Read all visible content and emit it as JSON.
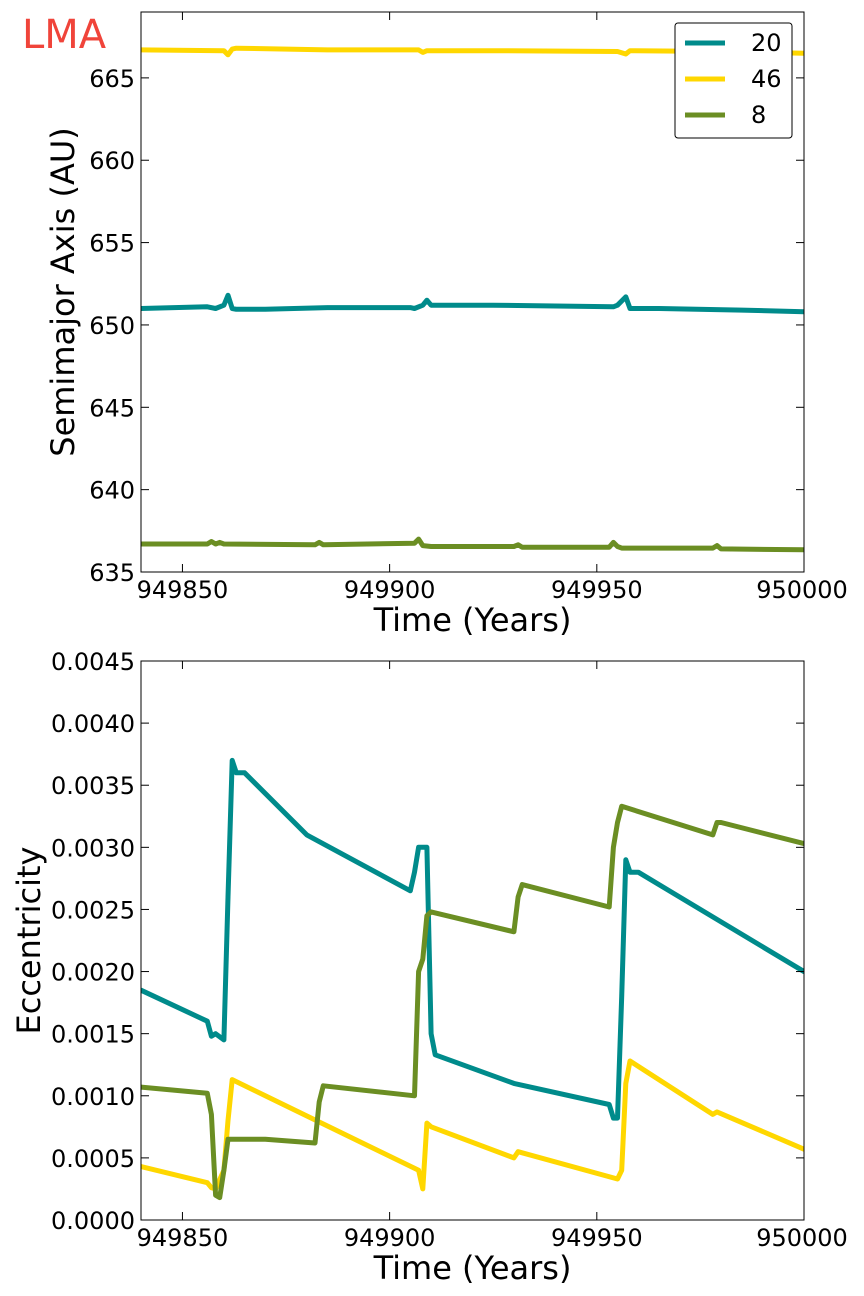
{
  "corner_label": "LMA",
  "colors": {
    "corner_label": "#f0443a",
    "series_20": "#008b8b",
    "series_46": "#ffd700",
    "series_8": "#6b8e23"
  },
  "chart_data": [
    {
      "type": "line",
      "xlabel": "Time (Years)",
      "ylabel": "Semimajor Axis (AU)",
      "xlim": [
        949840,
        950000
      ],
      "ylim": [
        635,
        669
      ],
      "x_ticks": [
        949850,
        949900,
        949950,
        950000
      ],
      "x_tick_labels": [
        "949850",
        "949900",
        "949950",
        "950000"
      ],
      "y_ticks": [
        635,
        640,
        645,
        650,
        655,
        660,
        665
      ],
      "y_tick_labels": [
        "635",
        "640",
        "645",
        "650",
        "655",
        "660",
        "665"
      ],
      "grid": false,
      "legend_position": "top-right",
      "series": [
        {
          "name": "20",
          "color": "#008b8b",
          "x": [
            949840,
            949856,
            949858,
            949860,
            949861,
            949862,
            949863,
            949870,
            949885,
            949905,
            949906,
            949908,
            949909,
            949910,
            949925,
            949940,
            949954,
            949955,
            949957,
            949958,
            949965,
            949985,
            950000
          ],
          "y": [
            651.0,
            651.1,
            651.0,
            651.2,
            651.8,
            651.0,
            650.95,
            650.95,
            651.05,
            651.05,
            651.0,
            651.2,
            651.5,
            651.2,
            651.2,
            651.15,
            651.1,
            651.2,
            651.7,
            651.0,
            651.0,
            650.9,
            650.8
          ]
        },
        {
          "name": "46",
          "color": "#ffd700",
          "x": [
            949840,
            949860,
            949861,
            949862,
            949863,
            949885,
            949907,
            949908,
            949909,
            949925,
            949955,
            949957,
            949958,
            949980,
            950000
          ],
          "y": [
            666.7,
            666.65,
            666.4,
            666.75,
            666.8,
            666.7,
            666.7,
            666.55,
            666.65,
            666.65,
            666.6,
            666.45,
            666.65,
            666.6,
            666.5
          ]
        },
        {
          "name": "8",
          "color": "#6b8e23",
          "x": [
            949840,
            949856,
            949857,
            949858,
            949859,
            949860,
            949882,
            949883,
            949884,
            949906,
            949907,
            949908,
            949910,
            949930,
            949931,
            949932,
            949953,
            949954,
            949955,
            949956,
            949978,
            949979,
            949980,
            950000
          ],
          "y": [
            636.7,
            636.7,
            636.85,
            636.7,
            636.8,
            636.7,
            636.65,
            636.8,
            636.65,
            636.75,
            637.0,
            636.6,
            636.55,
            636.55,
            636.65,
            636.5,
            636.5,
            636.8,
            636.55,
            636.45,
            636.45,
            636.6,
            636.4,
            636.35
          ]
        }
      ]
    },
    {
      "type": "line",
      "xlabel": "Time (Years)",
      "ylabel": "Eccentricity",
      "xlim": [
        949840,
        950000
      ],
      "ylim": [
        0.0,
        0.0045
      ],
      "x_ticks": [
        949850,
        949900,
        949950,
        950000
      ],
      "x_tick_labels": [
        "949850",
        "949900",
        "949950",
        "950000"
      ],
      "y_ticks": [
        0.0,
        0.0005,
        0.001,
        0.0015,
        0.002,
        0.0025,
        0.003,
        0.0035,
        0.004,
        0.0045
      ],
      "y_tick_labels": [
        "0.0000",
        "0.0005",
        "0.0010",
        "0.0015",
        "0.0020",
        "0.0025",
        "0.0030",
        "0.0035",
        "0.0040",
        "0.0045"
      ],
      "grid": false,
      "series": [
        {
          "name": "20",
          "color": "#008b8b",
          "x": [
            949840,
            949856,
            949857,
            949858,
            949860,
            949861,
            949862,
            949863,
            949865,
            949880,
            949905,
            949906,
            949907,
            949909,
            949910,
            949911,
            949930,
            949953,
            949954,
            949955,
            949956,
            949957,
            949958,
            949960,
            949980,
            950000
          ],
          "y": [
            0.00185,
            0.0016,
            0.00148,
            0.0015,
            0.00145,
            0.0026,
            0.0037,
            0.0036,
            0.0036,
            0.0031,
            0.00265,
            0.0028,
            0.003,
            0.003,
            0.0015,
            0.00133,
            0.0011,
            0.00093,
            0.00082,
            0.00082,
            0.0018,
            0.0029,
            0.0028,
            0.0028,
            0.0024,
            0.002
          ]
        },
        {
          "name": "46",
          "color": "#ffd700",
          "x": [
            949840,
            949856,
            949857,
            949858,
            949860,
            949861,
            949862,
            949870,
            949907,
            949908,
            949909,
            949910,
            949930,
            949931,
            949955,
            949956,
            949957,
            949958,
            949978,
            949979,
            950000
          ],
          "y": [
            0.00043,
            0.0003,
            0.00026,
            0.00025,
            0.0004,
            0.0008,
            0.00113,
            0.001,
            0.0004,
            0.00025,
            0.00078,
            0.00075,
            0.0005,
            0.00055,
            0.00033,
            0.0004,
            0.0011,
            0.00128,
            0.00085,
            0.00087,
            0.00057
          ]
        },
        {
          "name": "8",
          "color": "#6b8e23",
          "x": [
            949840,
            949856,
            949857,
            949858,
            949859,
            949860,
            949861,
            949870,
            949882,
            949883,
            949884,
            949906,
            949907,
            949908,
            949909,
            949910,
            949930,
            949931,
            949932,
            949953,
            949954,
            949955,
            949956,
            949978,
            949979,
            949980,
            950000
          ],
          "y": [
            0.00107,
            0.00102,
            0.00085,
            0.0002,
            0.00018,
            0.0004,
            0.00065,
            0.00065,
            0.00062,
            0.00095,
            0.00108,
            0.001,
            0.002,
            0.0021,
            0.00245,
            0.00248,
            0.00232,
            0.0026,
            0.0027,
            0.00252,
            0.003,
            0.0032,
            0.00333,
            0.0031,
            0.0032,
            0.0032,
            0.00303
          ]
        }
      ]
    }
  ]
}
